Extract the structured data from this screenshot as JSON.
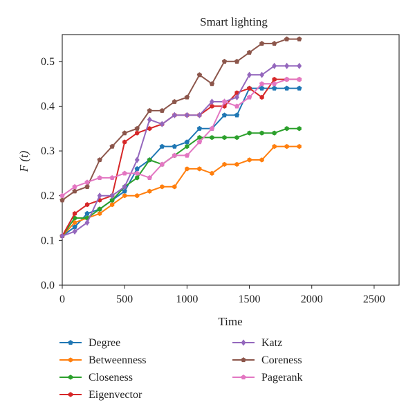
{
  "chart_data": {
    "type": "line",
    "title": "Smart lighting",
    "xlabel": "Time",
    "ylabel": "F (t)",
    "xlim": [
      0,
      2700
    ],
    "ylim": [
      0,
      0.56
    ],
    "xticks": [
      0,
      500,
      1000,
      1500,
      2000,
      2500
    ],
    "yticks": [
      0.0,
      0.1,
      0.2,
      0.3,
      0.4,
      0.5
    ],
    "grid": false,
    "legend_placement": "bottom",
    "x": [
      0,
      100,
      200,
      300,
      400,
      500,
      600,
      700,
      800,
      900,
      1000,
      1100,
      1200,
      1300,
      1400,
      1500,
      1600,
      1700,
      1800,
      1900
    ],
    "series": [
      {
        "name": "Degree",
        "color": "#1f77b4",
        "marker": "pentagon",
        "values": [
          0.11,
          0.13,
          0.16,
          0.17,
          0.19,
          0.21,
          0.26,
          0.28,
          0.31,
          0.31,
          0.32,
          0.35,
          0.35,
          0.38,
          0.38,
          0.44,
          0.44,
          0.44,
          0.44,
          0.44
        ]
      },
      {
        "name": "Betweenness",
        "color": "#ff7f0e",
        "marker": "hexagon",
        "values": [
          0.11,
          0.14,
          0.15,
          0.16,
          0.18,
          0.2,
          0.2,
          0.21,
          0.22,
          0.22,
          0.26,
          0.26,
          0.25,
          0.27,
          0.27,
          0.28,
          0.28,
          0.31,
          0.31,
          0.31
        ]
      },
      {
        "name": "Closeness",
        "color": "#2ca02c",
        "marker": "hexagon",
        "values": [
          0.11,
          0.15,
          0.15,
          0.17,
          0.19,
          0.22,
          0.24,
          0.28,
          0.27,
          0.29,
          0.31,
          0.33,
          0.33,
          0.33,
          0.33,
          0.34,
          0.34,
          0.34,
          0.35,
          0.35
        ]
      },
      {
        "name": "Eigenvector",
        "color": "#d62728",
        "marker": "hexagon",
        "values": [
          0.11,
          0.16,
          0.18,
          0.19,
          0.2,
          0.32,
          0.34,
          0.35,
          0.36,
          0.38,
          0.38,
          0.38,
          0.4,
          0.4,
          0.43,
          0.44,
          0.42,
          0.46,
          0.46,
          0.46
        ]
      },
      {
        "name": "Katz",
        "color": "#9467bd",
        "marker": "diamond",
        "values": [
          0.11,
          0.12,
          0.14,
          0.2,
          0.2,
          0.22,
          0.28,
          0.37,
          0.36,
          0.38,
          0.38,
          0.38,
          0.41,
          0.41,
          0.42,
          0.47,
          0.47,
          0.49,
          0.49,
          0.49
        ]
      },
      {
        "name": "Coreness",
        "color": "#8c564b",
        "marker": "pentagon",
        "values": [
          0.19,
          0.21,
          0.22,
          0.28,
          0.31,
          0.34,
          0.35,
          0.39,
          0.39,
          0.41,
          0.42,
          0.47,
          0.45,
          0.5,
          0.5,
          0.52,
          0.54,
          0.54,
          0.55,
          0.55
        ]
      },
      {
        "name": "Pagerank",
        "color": "#e377c2",
        "marker": "pentagon",
        "values": [
          0.2,
          0.22,
          0.23,
          0.24,
          0.24,
          0.25,
          0.25,
          0.24,
          0.27,
          0.29,
          0.29,
          0.32,
          0.35,
          0.41,
          0.4,
          0.42,
          0.45,
          0.45,
          0.46,
          0.46
        ]
      }
    ]
  }
}
